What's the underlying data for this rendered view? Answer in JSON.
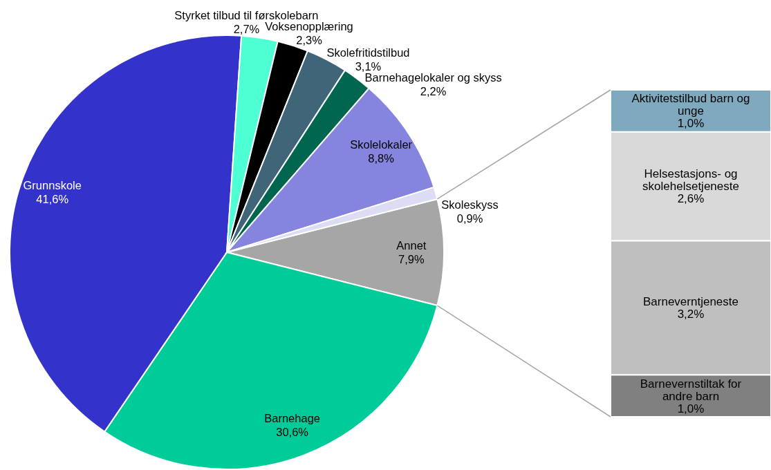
{
  "chart_data": [
    {
      "type": "pie",
      "categories": [
        "Annet",
        "Barnehage",
        "Grunnskole",
        "Styrket tilbud til førskolebarn",
        "Voksenopplæring",
        "Skolefritidstilbud",
        "Barnehagelokaler og skyss",
        "Skolelokaler",
        "Skoleskyss"
      ],
      "values": [
        7.9,
        30.6,
        41.6,
        2.7,
        2.3,
        3.1,
        2.2,
        8.8,
        0.9
      ],
      "value_labels": [
        "7,9%",
        "30,6%",
        "41,6%",
        "2,7%",
        "2,3%",
        "3,1%",
        "2,2%",
        "8,8%",
        "0,9%"
      ],
      "colors": [
        "#a6a6a6",
        "#00cc99",
        "#3333cc",
        "#4dffd2",
        "#000000",
        "#406578",
        "#00664f",
        "#8585e0",
        "#dcdcf5"
      ]
    },
    {
      "type": "bar",
      "stacked": true,
      "categories": [
        null
      ],
      "series": [
        {
          "name": "Barnevernstiltak for andre barn",
          "color": "#808080",
          "values": [
            1.0
          ],
          "value_labels": [
            "1,0%"
          ]
        },
        {
          "name": "Barneverntjeneste",
          "color": "#bfbfbf",
          "values": [
            3.2
          ],
          "value_labels": [
            "3,2%"
          ]
        },
        {
          "name": "Helsestasjons- og skolehelsetjeneste",
          "color": "#d9d9d9",
          "values": [
            2.6
          ],
          "value_labels": [
            "2,6%"
          ]
        },
        {
          "name": "Aktivitetstilbud barn og unge",
          "color": "#7fa9bf",
          "values": [
            1.0
          ],
          "value_labels": [
            "1,0%"
          ]
        }
      ]
    }
  ]
}
